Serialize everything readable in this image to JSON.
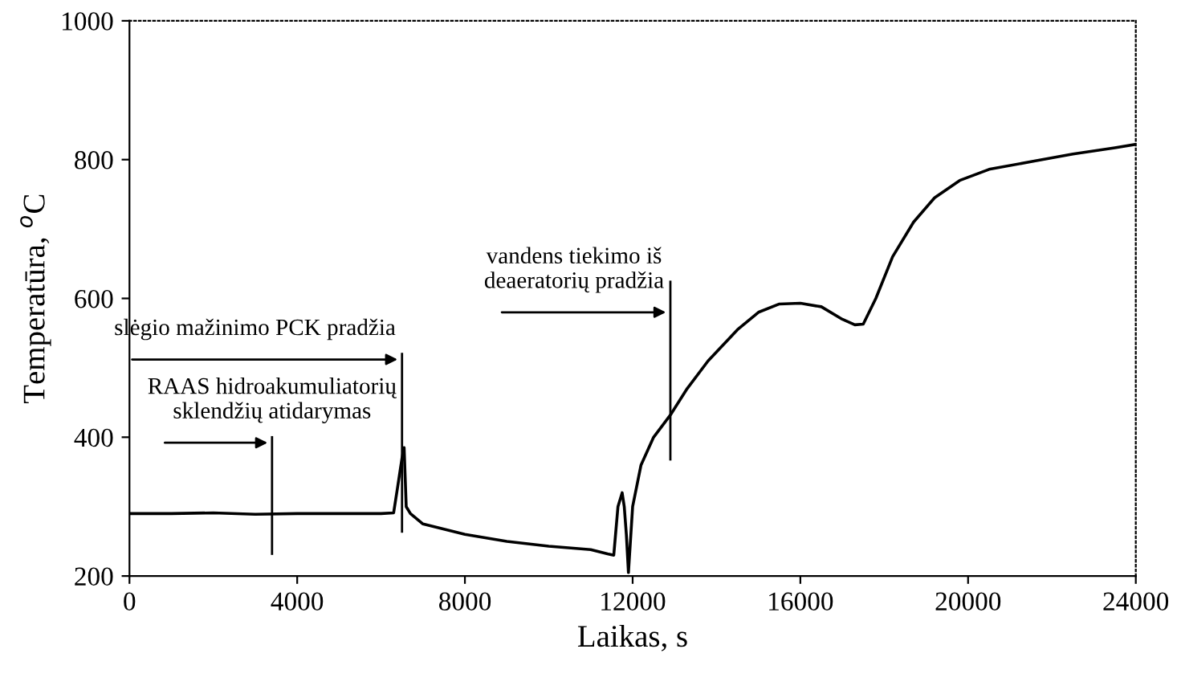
{
  "chart_data": {
    "type": "line",
    "xlabel": "Laikas, s",
    "ylabel": "Temperatūra, $^{o}$C",
    "x": [
      0,
      1000,
      2000,
      3000,
      4000,
      5000,
      6000,
      6300,
      6400,
      6500,
      6550,
      6600,
      6700,
      7000,
      8000,
      9000,
      10000,
      11000,
      11400,
      11550,
      11650,
      11750,
      11800,
      11850,
      11900,
      12000,
      12200,
      12500,
      12900,
      13300,
      13800,
      14500,
      15000,
      15500,
      16000,
      16500,
      17000,
      17300,
      17500,
      17800,
      18200,
      18700,
      19200,
      19800,
      20500,
      21500,
      22500,
      23500,
      24000
    ],
    "series": [
      {
        "color": "#000000",
        "values": [
          290,
          290,
          291,
          289,
          290,
          290,
          290,
          291,
          330,
          370,
          385,
          300,
          290,
          275,
          260,
          250,
          243,
          238,
          232,
          230,
          300,
          320,
          300,
          260,
          205,
          300,
          360,
          400,
          432,
          470,
          510,
          555,
          580,
          592,
          593,
          588,
          570,
          562,
          563,
          600,
          660,
          710,
          745,
          770,
          786,
          797,
          808,
          817,
          822
        ]
      }
    ],
    "xlim": [
      0,
      24000
    ],
    "ylim": [
      200,
      1000
    ],
    "xticks": [
      0,
      4000,
      8000,
      12000,
      16000,
      20000,
      24000
    ],
    "yticks": [
      200,
      400,
      600,
      800,
      1000
    ],
    "grid": false,
    "legend": false,
    "marker": "none",
    "line_style": "solid",
    "ref_lines": [
      {
        "axis": "x",
        "value": 3400,
        "label": "RAAS hidroakumuliatorių\nsklendžių atidarymas"
      },
      {
        "axis": "x",
        "value": 6500,
        "label": "slėgio mažinimo PCK pradžia"
      },
      {
        "axis": "x",
        "value": 12900,
        "label": "vandens tiekimo iš\ndeaeratorių pradžia"
      }
    ]
  }
}
